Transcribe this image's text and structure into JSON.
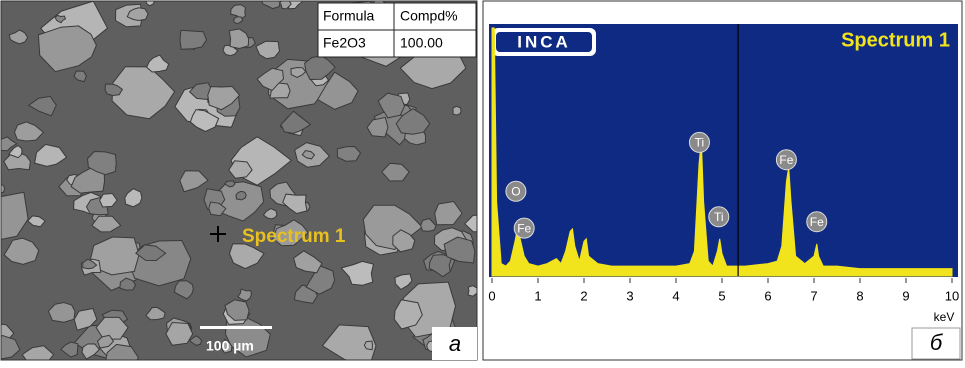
{
  "sem_image": {
    "table": {
      "header": [
        "Formula",
        "Compd%"
      ],
      "rows": [
        [
          "Fe2O3",
          "100.00"
        ]
      ]
    },
    "marker_label": "Spectrum 1",
    "scale_bar": "100 µm",
    "panel_label": "a"
  },
  "chart_data": {
    "type": "area",
    "title": "Spectrum 1",
    "logo": "INCA",
    "x_label": "keV",
    "panel_label": "б",
    "color": "#f2e41c",
    "x": [
      0,
      0.05,
      0.1,
      0.2,
      0.3,
      0.4,
      0.5,
      0.55,
      0.6,
      0.7,
      0.8,
      1.0,
      1.2,
      1.4,
      1.5,
      1.6,
      1.7,
      1.75,
      1.8,
      1.9,
      2.0,
      2.05,
      2.1,
      2.3,
      2.6,
      3.0,
      3.5,
      4.0,
      4.3,
      4.4,
      4.5,
      4.55,
      4.6,
      4.7,
      4.8,
      4.9,
      4.95,
      5.0,
      5.1,
      5.5,
      6.0,
      6.2,
      6.3,
      6.4,
      6.45,
      6.5,
      6.6,
      6.8,
      7.0,
      7.06,
      7.1,
      7.2,
      7.5,
      8.0,
      8.5,
      9.0,
      9.5,
      10
    ],
    "values": [
      100,
      100,
      30,
      5,
      4,
      6,
      14,
      19,
      16,
      8,
      5,
      4,
      5,
      7,
      5,
      10,
      18,
      19,
      12,
      6,
      14,
      15,
      8,
      5,
      4,
      4,
      4,
      4,
      5,
      10,
      45,
      55,
      30,
      6,
      4,
      10,
      15,
      9,
      4,
      4,
      5,
      6,
      12,
      38,
      44,
      30,
      8,
      5,
      8,
      13,
      8,
      4,
      4,
      3,
      3,
      3,
      3,
      3
    ],
    "xlim": [
      0,
      10
    ],
    "xticks": [
      0,
      1,
      2,
      3,
      4,
      5,
      6,
      7,
      8,
      9,
      10
    ],
    "ylim": [
      0,
      100
    ],
    "cursor_x": 5.35,
    "peak_labels": [
      {
        "label": "O",
        "x": 0.52
      },
      {
        "label": "Fe",
        "x": 0.7
      },
      {
        "label": "Ti",
        "x": 4.51
      },
      {
        "label": "Ti",
        "x": 4.93
      },
      {
        "label": "Fe",
        "x": 6.4
      },
      {
        "label": "Fe",
        "x": 7.06
      }
    ]
  }
}
